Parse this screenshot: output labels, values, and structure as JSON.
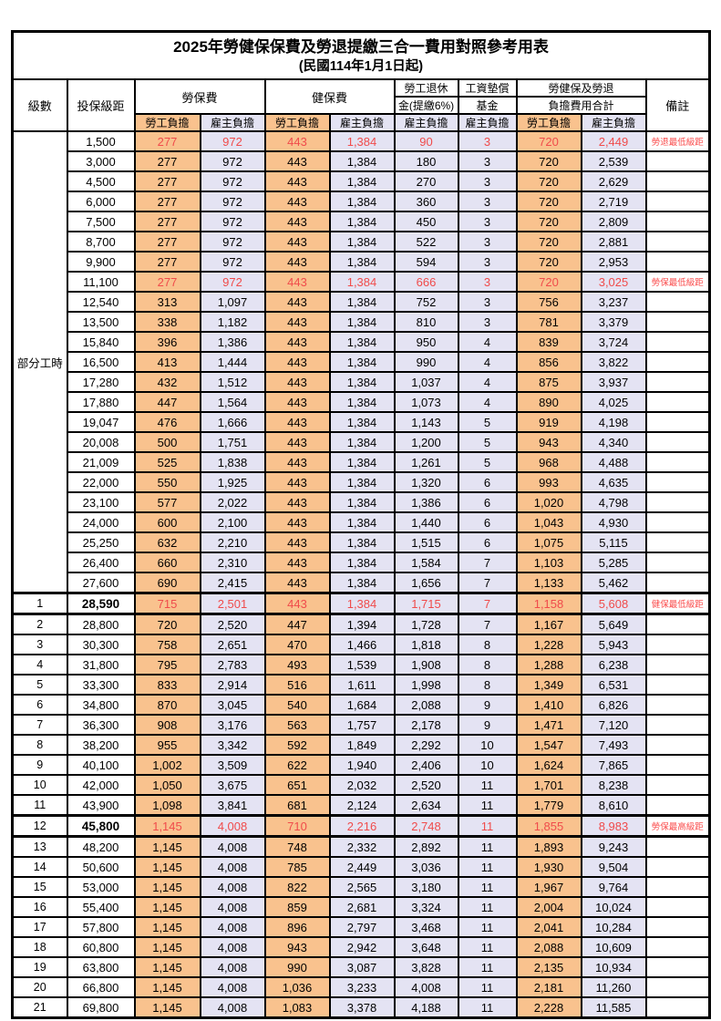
{
  "table": {
    "title": "2025年勞健保保費及勞退提繳三合一費用對照參考用表",
    "subtitle": "(民國114年1月1日起)",
    "header": {
      "level": "級數",
      "bracket": "投保級距",
      "labor_ins": "勞保費",
      "health_ins": "健保費",
      "pension_line1": "勞工退休",
      "pension_line2": "金(提繳6%)",
      "wage_fund_line1": "工資墊償",
      "wage_fund_line2": "基金",
      "total_line1": "勞健保及勞退",
      "total_line2": "負擔費用合計",
      "note": "備註",
      "employee": "勞工負擔",
      "employer": "雇主負擔"
    },
    "part_time_label": "部分工時",
    "part_time_rowspan": 23,
    "colors": {
      "employee_bg": "#F9C28E",
      "employer_bg": "#E4E3F3",
      "red_text": "#F04B4B"
    },
    "rows": [
      {
        "level": "",
        "bracket": "1,500",
        "labor_emp": "277",
        "labor_er": "972",
        "health_emp": "443",
        "health_er": "1,384",
        "pension": "90",
        "wage_fund": "3",
        "total_emp": "720",
        "total_er": "2,449",
        "note": "勞退最低級距",
        "red": true
      },
      {
        "level": "",
        "bracket": "3,000",
        "labor_emp": "277",
        "labor_er": "972",
        "health_emp": "443",
        "health_er": "1,384",
        "pension": "180",
        "wage_fund": "3",
        "total_emp": "720",
        "total_er": "2,539",
        "note": ""
      },
      {
        "level": "",
        "bracket": "4,500",
        "labor_emp": "277",
        "labor_er": "972",
        "health_emp": "443",
        "health_er": "1,384",
        "pension": "270",
        "wage_fund": "3",
        "total_emp": "720",
        "total_er": "2,629",
        "note": ""
      },
      {
        "level": "",
        "bracket": "6,000",
        "labor_emp": "277",
        "labor_er": "972",
        "health_emp": "443",
        "health_er": "1,384",
        "pension": "360",
        "wage_fund": "3",
        "total_emp": "720",
        "total_er": "2,719",
        "note": ""
      },
      {
        "level": "",
        "bracket": "7,500",
        "labor_emp": "277",
        "labor_er": "972",
        "health_emp": "443",
        "health_er": "1,384",
        "pension": "450",
        "wage_fund": "3",
        "total_emp": "720",
        "total_er": "2,809",
        "note": ""
      },
      {
        "level": "",
        "bracket": "8,700",
        "labor_emp": "277",
        "labor_er": "972",
        "health_emp": "443",
        "health_er": "1,384",
        "pension": "522",
        "wage_fund": "3",
        "total_emp": "720",
        "total_er": "2,881",
        "note": ""
      },
      {
        "level": "",
        "bracket": "9,900",
        "labor_emp": "277",
        "labor_er": "972",
        "health_emp": "443",
        "health_er": "1,384",
        "pension": "594",
        "wage_fund": "3",
        "total_emp": "720",
        "total_er": "2,953",
        "note": ""
      },
      {
        "level": "",
        "bracket": "11,100",
        "labor_emp": "277",
        "labor_er": "972",
        "health_emp": "443",
        "health_er": "1,384",
        "pension": "666",
        "wage_fund": "3",
        "total_emp": "720",
        "total_er": "3,025",
        "note": "勞保最低級距",
        "red": true
      },
      {
        "level": "",
        "bracket": "12,540",
        "labor_emp": "313",
        "labor_er": "1,097",
        "health_emp": "443",
        "health_er": "1,384",
        "pension": "752",
        "wage_fund": "3",
        "total_emp": "756",
        "total_er": "3,237",
        "note": ""
      },
      {
        "level": "",
        "bracket": "13,500",
        "labor_emp": "338",
        "labor_er": "1,182",
        "health_emp": "443",
        "health_er": "1,384",
        "pension": "810",
        "wage_fund": "3",
        "total_emp": "781",
        "total_er": "3,379",
        "note": ""
      },
      {
        "level": "",
        "bracket": "15,840",
        "labor_emp": "396",
        "labor_er": "1,386",
        "health_emp": "443",
        "health_er": "1,384",
        "pension": "950",
        "wage_fund": "4",
        "total_emp": "839",
        "total_er": "3,724",
        "note": ""
      },
      {
        "level": "",
        "bracket": "16,500",
        "labor_emp": "413",
        "labor_er": "1,444",
        "health_emp": "443",
        "health_er": "1,384",
        "pension": "990",
        "wage_fund": "4",
        "total_emp": "856",
        "total_er": "3,822",
        "note": ""
      },
      {
        "level": "",
        "bracket": "17,280",
        "labor_emp": "432",
        "labor_er": "1,512",
        "health_emp": "443",
        "health_er": "1,384",
        "pension": "1,037",
        "wage_fund": "4",
        "total_emp": "875",
        "total_er": "3,937",
        "note": ""
      },
      {
        "level": "",
        "bracket": "17,880",
        "labor_emp": "447",
        "labor_er": "1,564",
        "health_emp": "443",
        "health_er": "1,384",
        "pension": "1,073",
        "wage_fund": "4",
        "total_emp": "890",
        "total_er": "4,025",
        "note": ""
      },
      {
        "level": "",
        "bracket": "19,047",
        "labor_emp": "476",
        "labor_er": "1,666",
        "health_emp": "443",
        "health_er": "1,384",
        "pension": "1,143",
        "wage_fund": "5",
        "total_emp": "919",
        "total_er": "4,198",
        "note": ""
      },
      {
        "level": "",
        "bracket": "20,008",
        "labor_emp": "500",
        "labor_er": "1,751",
        "health_emp": "443",
        "health_er": "1,384",
        "pension": "1,200",
        "wage_fund": "5",
        "total_emp": "943",
        "total_er": "4,340",
        "note": ""
      },
      {
        "level": "",
        "bracket": "21,009",
        "labor_emp": "525",
        "labor_er": "1,838",
        "health_emp": "443",
        "health_er": "1,384",
        "pension": "1,261",
        "wage_fund": "5",
        "total_emp": "968",
        "total_er": "4,488",
        "note": ""
      },
      {
        "level": "",
        "bracket": "22,000",
        "labor_emp": "550",
        "labor_er": "1,925",
        "health_emp": "443",
        "health_er": "1,384",
        "pension": "1,320",
        "wage_fund": "6",
        "total_emp": "993",
        "total_er": "4,635",
        "note": ""
      },
      {
        "level": "",
        "bracket": "23,100",
        "labor_emp": "577",
        "labor_er": "2,022",
        "health_emp": "443",
        "health_er": "1,384",
        "pension": "1,386",
        "wage_fund": "6",
        "total_emp": "1,020",
        "total_er": "4,798",
        "note": ""
      },
      {
        "level": "",
        "bracket": "24,000",
        "labor_emp": "600",
        "labor_er": "2,100",
        "health_emp": "443",
        "health_er": "1,384",
        "pension": "1,440",
        "wage_fund": "6",
        "total_emp": "1,043",
        "total_er": "4,930",
        "note": ""
      },
      {
        "level": "",
        "bracket": "25,250",
        "labor_emp": "632",
        "labor_er": "2,210",
        "health_emp": "443",
        "health_er": "1,384",
        "pension": "1,515",
        "wage_fund": "6",
        "total_emp": "1,075",
        "total_er": "5,115",
        "note": ""
      },
      {
        "level": "",
        "bracket": "26,400",
        "labor_emp": "660",
        "labor_er": "2,310",
        "health_emp": "443",
        "health_er": "1,384",
        "pension": "1,584",
        "wage_fund": "7",
        "total_emp": "1,103",
        "total_er": "5,285",
        "note": ""
      },
      {
        "level": "",
        "bracket": "27,600",
        "labor_emp": "690",
        "labor_er": "2,415",
        "health_emp": "443",
        "health_er": "1,384",
        "pension": "1,656",
        "wage_fund": "7",
        "total_emp": "1,133",
        "total_er": "5,462",
        "note": ""
      },
      {
        "level": "1",
        "bracket": "28,590",
        "labor_emp": "715",
        "labor_er": "2,501",
        "health_emp": "443",
        "health_er": "1,384",
        "pension": "1,715",
        "wage_fund": "7",
        "total_emp": "1,158",
        "total_er": "5,608",
        "note": "健保最低級距",
        "red": true,
        "heavy": true,
        "bold": true
      },
      {
        "level": "2",
        "bracket": "28,800",
        "labor_emp": "720",
        "labor_er": "2,520",
        "health_emp": "447",
        "health_er": "1,394",
        "pension": "1,728",
        "wage_fund": "7",
        "total_emp": "1,167",
        "total_er": "5,649",
        "note": ""
      },
      {
        "level": "3",
        "bracket": "30,300",
        "labor_emp": "758",
        "labor_er": "2,651",
        "health_emp": "470",
        "health_er": "1,466",
        "pension": "1,818",
        "wage_fund": "8",
        "total_emp": "1,228",
        "total_er": "5,943",
        "note": ""
      },
      {
        "level": "4",
        "bracket": "31,800",
        "labor_emp": "795",
        "labor_er": "2,783",
        "health_emp": "493",
        "health_er": "1,539",
        "pension": "1,908",
        "wage_fund": "8",
        "total_emp": "1,288",
        "total_er": "6,238",
        "note": ""
      },
      {
        "level": "5",
        "bracket": "33,300",
        "labor_emp": "833",
        "labor_er": "2,914",
        "health_emp": "516",
        "health_er": "1,611",
        "pension": "1,998",
        "wage_fund": "8",
        "total_emp": "1,349",
        "total_er": "6,531",
        "note": ""
      },
      {
        "level": "6",
        "bracket": "34,800",
        "labor_emp": "870",
        "labor_er": "3,045",
        "health_emp": "540",
        "health_er": "1,684",
        "pension": "2,088",
        "wage_fund": "9",
        "total_emp": "1,410",
        "total_er": "6,826",
        "note": ""
      },
      {
        "level": "7",
        "bracket": "36,300",
        "labor_emp": "908",
        "labor_er": "3,176",
        "health_emp": "563",
        "health_er": "1,757",
        "pension": "2,178",
        "wage_fund": "9",
        "total_emp": "1,471",
        "total_er": "7,120",
        "note": ""
      },
      {
        "level": "8",
        "bracket": "38,200",
        "labor_emp": "955",
        "labor_er": "3,342",
        "health_emp": "592",
        "health_er": "1,849",
        "pension": "2,292",
        "wage_fund": "10",
        "total_emp": "1,547",
        "total_er": "7,493",
        "note": ""
      },
      {
        "level": "9",
        "bracket": "40,100",
        "labor_emp": "1,002",
        "labor_er": "3,509",
        "health_emp": "622",
        "health_er": "1,940",
        "pension": "2,406",
        "wage_fund": "10",
        "total_emp": "1,624",
        "total_er": "7,865",
        "note": ""
      },
      {
        "level": "10",
        "bracket": "42,000",
        "labor_emp": "1,050",
        "labor_er": "3,675",
        "health_emp": "651",
        "health_er": "2,032",
        "pension": "2,520",
        "wage_fund": "11",
        "total_emp": "1,701",
        "total_er": "8,238",
        "note": ""
      },
      {
        "level": "11",
        "bracket": "43,900",
        "labor_emp": "1,098",
        "labor_er": "3,841",
        "health_emp": "681",
        "health_er": "2,124",
        "pension": "2,634",
        "wage_fund": "11",
        "total_emp": "1,779",
        "total_er": "8,610",
        "note": ""
      },
      {
        "level": "12",
        "bracket": "45,800",
        "labor_emp": "1,145",
        "labor_er": "4,008",
        "health_emp": "710",
        "health_er": "2,216",
        "pension": "2,748",
        "wage_fund": "11",
        "total_emp": "1,855",
        "total_er": "8,983",
        "note": "勞保最高級距",
        "red": true,
        "heavy": true,
        "bold": true
      },
      {
        "level": "13",
        "bracket": "48,200",
        "labor_emp": "1,145",
        "labor_er": "4,008",
        "health_emp": "748",
        "health_er": "2,332",
        "pension": "2,892",
        "wage_fund": "11",
        "total_emp": "1,893",
        "total_er": "9,243",
        "note": ""
      },
      {
        "level": "14",
        "bracket": "50,600",
        "labor_emp": "1,145",
        "labor_er": "4,008",
        "health_emp": "785",
        "health_er": "2,449",
        "pension": "3,036",
        "wage_fund": "11",
        "total_emp": "1,930",
        "total_er": "9,504",
        "note": ""
      },
      {
        "level": "15",
        "bracket": "53,000",
        "labor_emp": "1,145",
        "labor_er": "4,008",
        "health_emp": "822",
        "health_er": "2,565",
        "pension": "3,180",
        "wage_fund": "11",
        "total_emp": "1,967",
        "total_er": "9,764",
        "note": ""
      },
      {
        "level": "16",
        "bracket": "55,400",
        "labor_emp": "1,145",
        "labor_er": "4,008",
        "health_emp": "859",
        "health_er": "2,681",
        "pension": "3,324",
        "wage_fund": "11",
        "total_emp": "2,004",
        "total_er": "10,024",
        "note": ""
      },
      {
        "level": "17",
        "bracket": "57,800",
        "labor_emp": "1,145",
        "labor_er": "4,008",
        "health_emp": "896",
        "health_er": "2,797",
        "pension": "3,468",
        "wage_fund": "11",
        "total_emp": "2,041",
        "total_er": "10,284",
        "note": ""
      },
      {
        "level": "18",
        "bracket": "60,800",
        "labor_emp": "1,145",
        "labor_er": "4,008",
        "health_emp": "943",
        "health_er": "2,942",
        "pension": "3,648",
        "wage_fund": "11",
        "total_emp": "2,088",
        "total_er": "10,609",
        "note": ""
      },
      {
        "level": "19",
        "bracket": "63,800",
        "labor_emp": "1,145",
        "labor_er": "4,008",
        "health_emp": "990",
        "health_er": "3,087",
        "pension": "3,828",
        "wage_fund": "11",
        "total_emp": "2,135",
        "total_er": "10,934",
        "note": ""
      },
      {
        "level": "20",
        "bracket": "66,800",
        "labor_emp": "1,145",
        "labor_er": "4,008",
        "health_emp": "1,036",
        "health_er": "3,233",
        "pension": "4,008",
        "wage_fund": "11",
        "total_emp": "2,181",
        "total_er": "11,260",
        "note": ""
      },
      {
        "level": "21",
        "bracket": "69,800",
        "labor_emp": "1,145",
        "labor_er": "4,008",
        "health_emp": "1,083",
        "health_er": "3,378",
        "pension": "4,188",
        "wage_fund": "11",
        "total_emp": "2,228",
        "total_er": "11,585",
        "note": ""
      }
    ]
  }
}
